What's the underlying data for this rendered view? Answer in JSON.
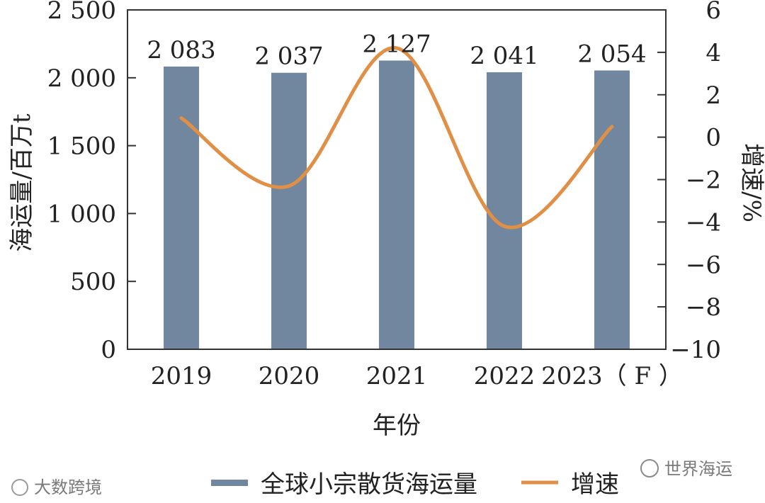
{
  "chart_data": {
    "type": "bar",
    "categories": [
      "2019",
      "2020",
      "2021",
      "2022",
      "2023（ F ）"
    ],
    "series": [
      {
        "name": "全球小宗散货海运量",
        "type": "bar",
        "axis": "left",
        "values": [
          2083,
          2037,
          2127,
          2041,
          2054
        ]
      },
      {
        "name": "增速",
        "type": "line",
        "axis": "right",
        "values": [
          0.9,
          -2.3,
          4.2,
          -4.2,
          0.5
        ]
      }
    ],
    "data_labels": [
      "2 083",
      "2 037",
      "2 127",
      "2 041",
      "2 054"
    ],
    "xlabel": "年份",
    "ylabel_left": "海运量/百万t",
    "ylabel_right": "增速/%",
    "ylim_left": [
      0,
      2500
    ],
    "ylim_right": [
      -10,
      6
    ],
    "yticks_left": [
      "0",
      "500",
      "1 000",
      "1 500",
      "2 000",
      "2 500"
    ],
    "yticks_right": [
      "−10",
      "−8",
      "−6",
      "−4",
      "−2",
      "0",
      "2",
      "4",
      "6"
    ],
    "grid": false,
    "legend_position": "bottom",
    "colors": {
      "bar": "#71879f",
      "line": "#e08f46",
      "axis": "#333333"
    }
  },
  "watermarks": {
    "left": "大数跨境",
    "right": "世界海运"
  }
}
